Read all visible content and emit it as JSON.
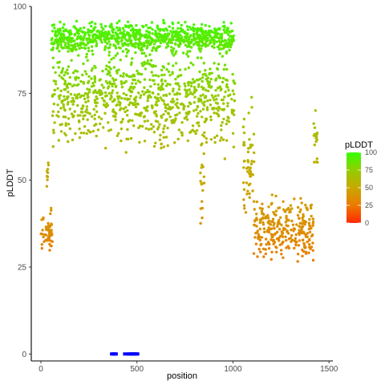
{
  "chart_data": {
    "type": "scatter",
    "xlabel": "position",
    "ylabel": "pLDDT",
    "xlim": [
      -50,
      1520
    ],
    "ylim": [
      -2,
      100
    ],
    "x_ticks": [
      0,
      500,
      1000,
      1500
    ],
    "x_tick_labels": [
      "0",
      "500",
      "1000",
      "1500"
    ],
    "y_ticks": [
      0,
      25,
      50,
      75,
      100
    ],
    "y_tick_labels": [
      "0",
      "25",
      "50",
      "75",
      "100"
    ],
    "grid": false,
    "legend": {
      "title": "pLDDT",
      "placement": "right",
      "type": "colorbar",
      "ticks": [
        0,
        25,
        50,
        75,
        100
      ],
      "tick_labels": [
        "0",
        "25",
        "50",
        "75",
        "100"
      ],
      "colors": [
        "#ff2a00",
        "#ec7a00",
        "#c8a800",
        "#93cd00",
        "#33ff00"
      ]
    },
    "series": [
      {
        "type": "scatter",
        "color_by": "y",
        "segments": [
          {
            "x_start": 1,
            "x_end": 60,
            "y_range": [
              28,
              44
            ],
            "mean": 35
          },
          {
            "x_start": 30,
            "x_end": 40,
            "y_range": [
              48,
              59
            ],
            "mean": 53
          },
          {
            "x_start": 55,
            "x_end": 1010,
            "y_range": [
              85,
              96
            ],
            "mean": 91
          },
          {
            "x_start": 60,
            "x_end": 1010,
            "y_range": [
              49,
              88
            ],
            "mean": 74
          },
          {
            "x_start": 830,
            "x_end": 850,
            "y_range": [
              33,
              68
            ],
            "mean": 48
          },
          {
            "x_start": 1050,
            "x_end": 1110,
            "y_range": [
              28,
              86
            ],
            "mean": 55
          },
          {
            "x_start": 1110,
            "x_end": 1420,
            "y_range": [
              25,
              49
            ],
            "mean": 36
          },
          {
            "x_start": 1420,
            "x_end": 1440,
            "y_range": [
              50,
              71
            ],
            "mean": 62
          }
        ]
      },
      {
        "type": "scatter",
        "color": "#0000ff",
        "shape": "square",
        "points": [
          {
            "x": 372,
            "y": 0
          },
          {
            "x": 380,
            "y": 0
          },
          {
            "x": 388,
            "y": 0
          },
          {
            "x": 440,
            "y": 0
          },
          {
            "x": 460,
            "y": 0
          },
          {
            "x": 468,
            "y": 0
          },
          {
            "x": 476,
            "y": 0
          },
          {
            "x": 484,
            "y": 0
          },
          {
            "x": 492,
            "y": 0
          },
          {
            "x": 500,
            "y": 0
          }
        ]
      }
    ]
  }
}
